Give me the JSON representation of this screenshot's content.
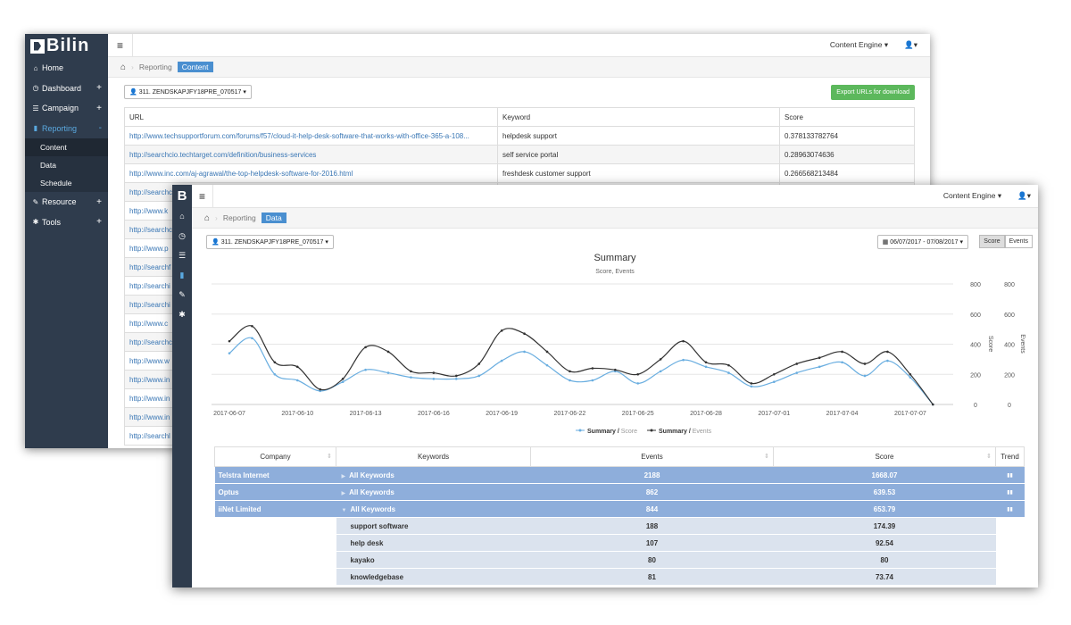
{
  "back": {
    "logo_text": "Bilin",
    "sidebar": [
      {
        "label": "Home",
        "icon": "home-icon",
        "glyph": "⌂",
        "plus": ""
      },
      {
        "label": "Dashboard",
        "icon": "dashboard-icon",
        "glyph": "◷",
        "plus": "+"
      },
      {
        "label": "Campaign",
        "icon": "campaign-icon",
        "glyph": "☰",
        "plus": "+"
      },
      {
        "label": "Reporting",
        "icon": "reporting-icon",
        "glyph": "▮",
        "plus": "-"
      },
      {
        "label": "Resource",
        "icon": "wrench-icon",
        "glyph": "✎",
        "plus": "+"
      },
      {
        "label": "Tools",
        "icon": "gear-icon",
        "glyph": "✱",
        "plus": "+"
      }
    ],
    "sub_items": [
      "Content",
      "Data",
      "Schedule"
    ],
    "topbar": {
      "engine": "Content Engine ▾",
      "user": "👤▾"
    },
    "breadcrumb": {
      "parent": "Reporting",
      "current": "Content"
    },
    "account": "311. ZENDSKAPJFY18PRE_070517 ▾",
    "export_label": "Export URLs for download",
    "columns": [
      "URL",
      "Keyword",
      "Score"
    ],
    "rows": [
      {
        "url": "http://www.techsupportforum.com/forums/f57/cloud-it-help-desk-software-that-works-with-office-365-a-108...",
        "keyword": "helpdesk support",
        "score": "0.378133782764"
      },
      {
        "url": "http://searchcio.techtarget.com/definition/business-services",
        "keyword": "self service portal",
        "score": "0.28963074636"
      },
      {
        "url": "http://www.inc.com/aj-agrawal/the-top-helpdesk-software-for-2016.html",
        "keyword": "freshdesk customer support",
        "score": "0.266568213484"
      },
      {
        "url": "http://searchc",
        "keyword": "",
        "score": ""
      },
      {
        "url": "http://www.k",
        "keyword": "",
        "score": ""
      },
      {
        "url": "http://searchc",
        "keyword": "",
        "score": ""
      },
      {
        "url": "http://www.p",
        "keyword": "",
        "score": ""
      },
      {
        "url": "http://searchf",
        "keyword": "",
        "score": ""
      },
      {
        "url": "http://searchi",
        "keyword": "",
        "score": ""
      },
      {
        "url": "http://searchi",
        "keyword": "",
        "score": ""
      },
      {
        "url": "http://www.c",
        "keyword": "",
        "score": ""
      },
      {
        "url": "http://searchc",
        "keyword": "",
        "score": ""
      },
      {
        "url": "http://www.w",
        "keyword": "",
        "score": ""
      },
      {
        "url": "http://www.in",
        "keyword": "",
        "score": ""
      },
      {
        "url": "http://www.in",
        "keyword": "",
        "score": ""
      },
      {
        "url": "http://www.in",
        "keyword": "",
        "score": ""
      },
      {
        "url": "http://searchl",
        "keyword": "",
        "score": ""
      }
    ]
  },
  "front": {
    "logo_text": "B",
    "icons": [
      "home-icon",
      "dashboard-icon",
      "campaign-icon",
      "reporting-icon",
      "wrench-icon",
      "gear-icon"
    ],
    "icon_glyphs": [
      "⌂",
      "◷",
      "☰",
      "▮",
      "✎",
      "✱"
    ],
    "topbar": {
      "engine": "Content Engine ▾",
      "user": "👤▾"
    },
    "breadcrumb": {
      "parent": "Reporting",
      "current": "Data"
    },
    "account": "311. ZENDSKAPJFY18PRE_070517 ▾",
    "date_range": "▦ 06/07/2017 - 07/08/2017 ▾",
    "toggle": [
      "Score",
      "Events"
    ],
    "table": {
      "columns": [
        "Company",
        "Keywords",
        "Events",
        "Score",
        "Trend"
      ],
      "groups": [
        {
          "company": "Telstra Internet",
          "keywords": "All Keywords",
          "events": "2188",
          "score": "1668.07",
          "tri": "▶"
        },
        {
          "company": "Optus",
          "keywords": "All Keywords",
          "events": "862",
          "score": "639.53",
          "tri": "▶"
        },
        {
          "company": "iiNet Limited",
          "keywords": "All Keywords",
          "events": "844",
          "score": "653.79",
          "tri": "▼"
        }
      ],
      "subrows": [
        {
          "keywords": "support software",
          "events": "188",
          "score": "174.39"
        },
        {
          "keywords": "help desk",
          "events": "107",
          "score": "92.54"
        },
        {
          "keywords": "kayako",
          "events": "80",
          "score": "80"
        },
        {
          "keywords": "knowledgebase",
          "events": "81",
          "score": "73.74"
        }
      ]
    }
  },
  "chart_data": {
    "type": "line",
    "title": "Summary",
    "subtitle": "Score, Events",
    "x_ticks": [
      "2017-06-07",
      "2017-06-10",
      "2017-06-13",
      "2017-06-16",
      "2017-06-19",
      "2017-06-22",
      "2017-06-25",
      "2017-06-28",
      "2017-07-01",
      "2017-07-04",
      "2017-07-07"
    ],
    "y_ticks": [
      "0",
      "200",
      "400",
      "600",
      "800"
    ],
    "y_left_label": "Score",
    "y_right_label": "Events",
    "ylim": [
      0,
      800
    ],
    "series": [
      {
        "name": "Summary / Score",
        "color": "#6aaee0",
        "values": [
          340,
          440,
          200,
          160,
          90,
          150,
          230,
          210,
          180,
          170,
          170,
          190,
          290,
          350,
          260,
          160,
          160,
          220,
          140,
          220,
          295,
          250,
          210,
          120,
          150,
          210,
          250,
          280,
          190,
          290,
          180,
          0
        ]
      },
      {
        "name": "Summary / Events",
        "color": "#333333",
        "values": [
          420,
          520,
          280,
          250,
          100,
          170,
          380,
          350,
          220,
          210,
          190,
          270,
          490,
          470,
          350,
          220,
          240,
          230,
          200,
          300,
          420,
          280,
          260,
          140,
          200,
          270,
          310,
          350,
          270,
          350,
          200,
          0
        ]
      }
    ],
    "legend": [
      {
        "series": "Summary",
        "sep": " / ",
        "metric": "Score"
      },
      {
        "series": "Summary",
        "sep": " / ",
        "metric": "Events"
      }
    ],
    "legend_position": "bottom"
  }
}
